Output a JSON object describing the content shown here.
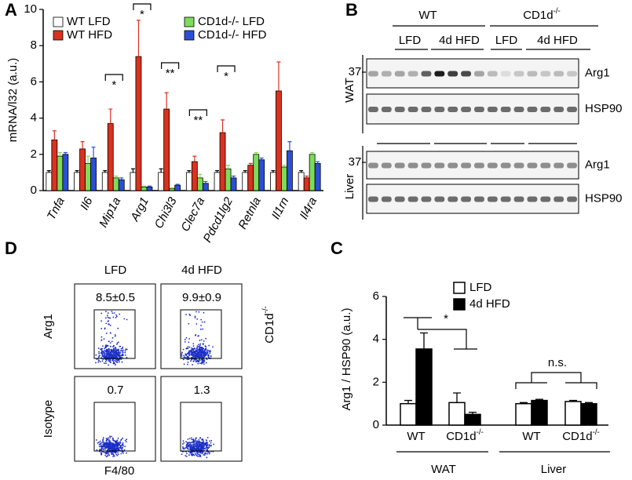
{
  "chart_data": [
    {
      "type": "bar",
      "panel": "A",
      "y_label": "mRNA/l32 (a.u.)",
      "categories": [
        "Tnfa",
        "Il6",
        "Mip1a",
        "Arg1",
        "Chi3l3",
        "Clec7a",
        "Pdcd1lg2",
        "Retnla",
        "Il1rn",
        "Il4ra"
      ],
      "category_colors": [
        "#000000",
        "#000000",
        "#000000",
        "#6a2c91",
        "#6a2c91",
        "#6a2c91",
        "#6a2c91",
        "#6a2c91",
        "#6a2c91",
        "#6a2c91"
      ],
      "series": [
        {
          "name": "WT LFD",
          "color": "#ffffff",
          "values": [
            1.0,
            1.0,
            1.0,
            1.0,
            1.0,
            1.0,
            1.0,
            1.0,
            1.0,
            1.0
          ],
          "errors": [
            0.1,
            0.1,
            0.1,
            0.2,
            0.2,
            0.1,
            0.1,
            0.1,
            0.1,
            0.1
          ]
        },
        {
          "name": "WT HFD",
          "color": "#d9321f",
          "values": [
            2.8,
            2.3,
            3.7,
            7.4,
            4.5,
            1.6,
            3.2,
            1.4,
            5.5,
            0.7
          ],
          "errors": [
            0.5,
            0.4,
            0.8,
            2.0,
            0.9,
            0.3,
            0.7,
            0.1,
            1.6,
            0.1
          ]
        },
        {
          "name": "CD1d-/- LFD",
          "color": "#7ddc5a",
          "values": [
            1.9,
            1.5,
            0.7,
            0.2,
            0.1,
            0.7,
            1.2,
            2.0,
            1.3,
            2.0
          ],
          "errors": [
            0.2,
            0.4,
            0.1,
            0.05,
            0.05,
            0.2,
            0.2,
            0.1,
            0.1,
            0.1
          ]
        },
        {
          "name": "CD1d-/- HFD",
          "color": "#2a4fd6",
          "values": [
            2.0,
            1.8,
            0.6,
            0.2,
            0.3,
            0.4,
            0.7,
            1.7,
            2.2,
            1.5
          ],
          "errors": [
            0.1,
            0.6,
            0.1,
            0.05,
            0.05,
            0.1,
            0.1,
            0.1,
            0.5,
            0.1
          ]
        }
      ],
      "annotations": [
        "*",
        "*",
        "**",
        "**",
        "*"
      ],
      "ylim": [
        0,
        10
      ],
      "yticks": [
        0,
        2,
        4,
        6,
        8,
        10
      ]
    },
    {
      "type": "bar",
      "panel": "C",
      "y_label": "Arg1 / HSP90 (a.u.)",
      "categories": [
        "WT",
        "CD1d-/-",
        "WT",
        "CD1d-/-"
      ],
      "groups": [
        "WAT",
        "Liver"
      ],
      "series": [
        {
          "name": "LFD",
          "color": "#ffffff",
          "values": [
            1.0,
            1.05,
            1.0,
            1.1
          ],
          "errors": [
            0.15,
            0.45,
            0.05,
            0.05
          ]
        },
        {
          "name": "4d HFD",
          "color": "#000000",
          "values": [
            3.55,
            0.5,
            1.15,
            1.0
          ],
          "errors": [
            0.75,
            0.1,
            0.05,
            0.05
          ]
        }
      ],
      "annotations": [
        "*",
        "n.s."
      ],
      "ylim": [
        0,
        6
      ],
      "yticks": [
        0,
        2,
        4,
        6
      ]
    }
  ],
  "blot": {
    "panel": "B",
    "genotypes": [
      "WT",
      "CD1d-/-"
    ],
    "diets": [
      "LFD",
      "4d HFD",
      "LFD",
      "4d HFD"
    ],
    "tissues": [
      "WAT",
      "Liver"
    ],
    "rows": [
      "Arg1",
      "HSP90",
      "Arg1",
      "HSP90"
    ],
    "marker": "37"
  },
  "flow": {
    "panel": "D",
    "columns": [
      "LFD",
      "4d HFD"
    ],
    "rows": [
      "Arg1",
      "Isotype"
    ],
    "gates": [
      "8.5±0.5",
      "9.9±0.9",
      "0.7",
      "1.3"
    ],
    "side_label": "CD1d-/-",
    "x_label": "F4/80"
  }
}
